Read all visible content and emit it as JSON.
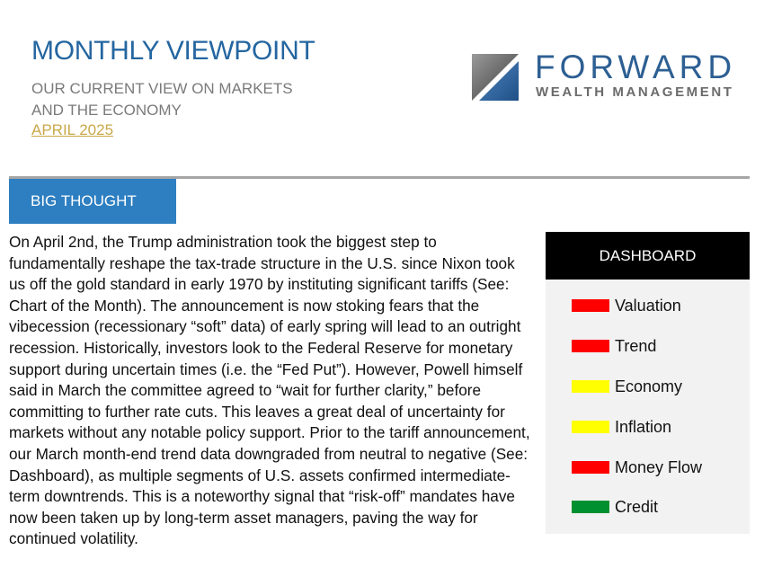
{
  "header": {
    "title": "MONTHLY VIEWPOINT",
    "subtitle_line1": "OUR CURRENT VIEW ON MARKETS",
    "subtitle_line2": "AND THE ECONOMY",
    "date": "APRIL 2025"
  },
  "logo": {
    "name": "FORWARD",
    "tagline": "WEALTH MANAGEMENT"
  },
  "section": {
    "label": "BIG THOUGHT"
  },
  "article": {
    "text": "On April 2nd, the Trump administration took the biggest step to fundamentally reshape the tax-trade structure in the U.S. since Nixon took us off the gold standard in early 1970 by instituting significant tariffs (See: Chart of the Month). The announcement is now stoking fears that the vibecession (recessionary “soft” data) of early spring will lead to an outright recession. Historically, investors look to the Federal Reserve for monetary support during uncertain times (i.e. the “Fed Put”). However, Powell himself said in March the committee agreed to “wait for further clarity,” before committing to further rate cuts. This leaves a great deal of uncertainty for markets without any notable policy support. Prior to the tariff announcement, our March month-end trend data downgraded from neutral to negative (See: Dashboard), as multiple segments of U.S. assets confirmed intermediate-term downtrends. This is a noteworthy signal that “risk-off” mandates have now been taken up by long-term asset managers, paving the way for continued volatility."
  },
  "dashboard": {
    "title": "DASHBOARD",
    "items": [
      {
        "label": "Valuation",
        "color": "#ff0000"
      },
      {
        "label": "Trend",
        "color": "#ff0000"
      },
      {
        "label": "Economy",
        "color": "#ffff00"
      },
      {
        "label": "Inflation",
        "color": "#ffff00"
      },
      {
        "label": "Money Flow",
        "color": "#ff0000"
      },
      {
        "label": "Credit",
        "color": "#009030"
      }
    ]
  },
  "colors": {
    "accent_blue": "#2e7fc1",
    "title_blue": "#2466a0",
    "date_gold": "#c9a84a"
  }
}
